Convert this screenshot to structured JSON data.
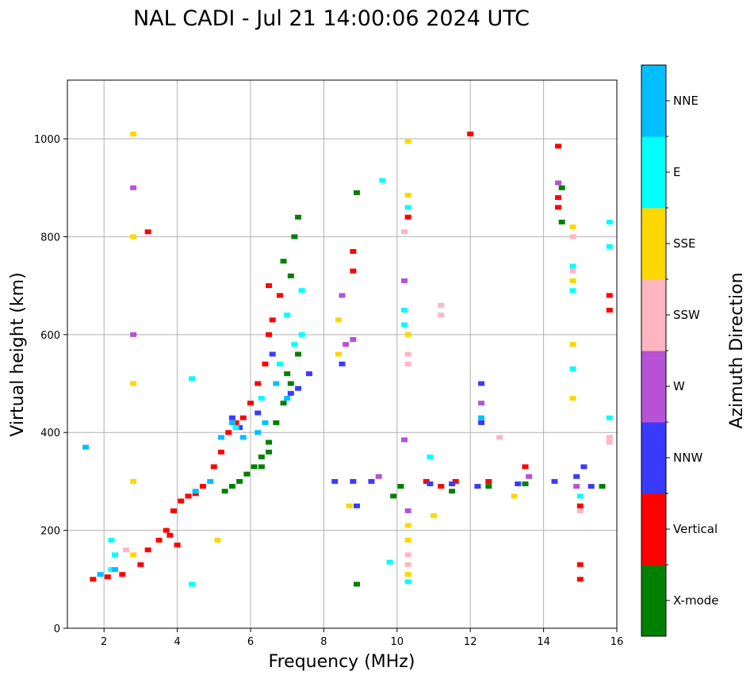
{
  "chart_data": {
    "type": "scatter",
    "title": "NAL CADI - Jul 21 14:00:06 2024 UTC",
    "xlabel": "Frequency (MHz)",
    "ylabel": "Virtual height (km)",
    "xlim": [
      1,
      16
    ],
    "ylim": [
      0,
      1120
    ],
    "xticks": [
      2,
      4,
      6,
      8,
      10,
      12,
      14,
      16
    ],
    "yticks": [
      0,
      200,
      400,
      600,
      800,
      1000
    ],
    "grid": true,
    "colorbar": {
      "title": "Azimuth Direction",
      "categories": [
        {
          "label": "X-mode",
          "color": "#008000"
        },
        {
          "label": "Vertical",
          "color": "#ff0000"
        },
        {
          "label": "NNW",
          "color": "#3a3aff"
        },
        {
          "label": "W",
          "color": "#b552d6"
        },
        {
          "label": "SSW",
          "color": "#ffb6c1"
        },
        {
          "label": "SSE",
          "color": "#ffd700"
        },
        {
          "label": "E",
          "color": "#00ffff"
        },
        {
          "label": "NNE",
          "color": "#00bfff"
        }
      ]
    },
    "series": [
      {
        "name": "X-mode",
        "points": [
          [
            5.3,
            280
          ],
          [
            5.5,
            290
          ],
          [
            5.7,
            300
          ],
          [
            5.9,
            315
          ],
          [
            6.1,
            330
          ],
          [
            6.3,
            350
          ],
          [
            6.5,
            380
          ],
          [
            6.7,
            420
          ],
          [
            6.9,
            460
          ],
          [
            7.1,
            500
          ],
          [
            7.3,
            560
          ],
          [
            7.1,
            720
          ],
          [
            6.9,
            750
          ],
          [
            7.2,
            800
          ],
          [
            7.3,
            840
          ],
          [
            8.9,
            890
          ],
          [
            8.9,
            90
          ],
          [
            10.1,
            290
          ],
          [
            11.5,
            280
          ],
          [
            12.5,
            290
          ],
          [
            13.5,
            295
          ],
          [
            14.5,
            830
          ],
          [
            14.5,
            900
          ],
          [
            15.6,
            290
          ],
          [
            9.9,
            270
          ],
          [
            6.3,
            330
          ],
          [
            6.5,
            360
          ],
          [
            7.0,
            520
          ]
        ]
      },
      {
        "name": "Vertical",
        "points": [
          [
            1.7,
            100
          ],
          [
            2.1,
            105
          ],
          [
            2.5,
            110
          ],
          [
            3.0,
            130
          ],
          [
            3.2,
            160
          ],
          [
            3.5,
            180
          ],
          [
            3.7,
            200
          ],
          [
            3.9,
            240
          ],
          [
            4.1,
            260
          ],
          [
            4.3,
            270
          ],
          [
            4.5,
            275
          ],
          [
            4.7,
            290
          ],
          [
            5.0,
            330
          ],
          [
            5.2,
            360
          ],
          [
            5.4,
            400
          ],
          [
            5.6,
            420
          ],
          [
            5.8,
            430
          ],
          [
            6.0,
            460
          ],
          [
            6.2,
            500
          ],
          [
            6.4,
            540
          ],
          [
            6.5,
            600
          ],
          [
            6.6,
            630
          ],
          [
            6.5,
            700
          ],
          [
            6.8,
            680
          ],
          [
            3.8,
            190
          ],
          [
            4.0,
            170
          ],
          [
            12.0,
            1010
          ],
          [
            14.4,
            985
          ],
          [
            14.4,
            880
          ],
          [
            14.4,
            860
          ],
          [
            10.8,
            300
          ],
          [
            11.2,
            290
          ],
          [
            11.6,
            300
          ],
          [
            12.5,
            300
          ],
          [
            13.5,
            330
          ],
          [
            15.0,
            250
          ],
          [
            15.0,
            130
          ],
          [
            15.0,
            100
          ],
          [
            15.8,
            680
          ],
          [
            15.8,
            650
          ],
          [
            8.8,
            770
          ],
          [
            8.8,
            730
          ],
          [
            10.3,
            840
          ],
          [
            3.2,
            810
          ]
        ]
      },
      {
        "name": "NNW",
        "points": [
          [
            5.5,
            430
          ],
          [
            5.7,
            410
          ],
          [
            6.2,
            440
          ],
          [
            6.6,
            560
          ],
          [
            7.1,
            480
          ],
          [
            7.3,
            490
          ],
          [
            7.6,
            520
          ],
          [
            8.3,
            300
          ],
          [
            8.8,
            300
          ],
          [
            9.3,
            300
          ],
          [
            10.9,
            295
          ],
          [
            11.5,
            295
          ],
          [
            12.2,
            290
          ],
          [
            13.3,
            295
          ],
          [
            14.3,
            300
          ],
          [
            14.9,
            310
          ],
          [
            15.1,
            330
          ],
          [
            15.3,
            290
          ],
          [
            8.9,
            250
          ],
          [
            12.3,
            500
          ],
          [
            12.3,
            420
          ],
          [
            8.5,
            540
          ]
        ]
      },
      {
        "name": "W",
        "points": [
          [
            2.8,
            900
          ],
          [
            2.8,
            600
          ],
          [
            8.8,
            590
          ],
          [
            8.6,
            580
          ],
          [
            10.2,
            710
          ],
          [
            10.2,
            385
          ],
          [
            8.5,
            680
          ],
          [
            12.3,
            460
          ],
          [
            14.9,
            290
          ],
          [
            14.4,
            910
          ],
          [
            13.6,
            310
          ],
          [
            10.3,
            240
          ],
          [
            9.5,
            310
          ]
        ]
      },
      {
        "name": "SSW",
        "points": [
          [
            2.6,
            160
          ],
          [
            10.3,
            560
          ],
          [
            10.3,
            540
          ],
          [
            10.3,
            150
          ],
          [
            10.3,
            130
          ],
          [
            11.2,
            660
          ],
          [
            11.2,
            640
          ],
          [
            14.8,
            730
          ],
          [
            14.8,
            800
          ],
          [
            15.0,
            240
          ],
          [
            15.8,
            390
          ],
          [
            15.8,
            380
          ],
          [
            12.8,
            390
          ],
          [
            10.2,
            810
          ]
        ]
      },
      {
        "name": "SSE",
        "points": [
          [
            2.8,
            1010
          ],
          [
            2.8,
            800
          ],
          [
            2.8,
            500
          ],
          [
            2.8,
            300
          ],
          [
            2.8,
            150
          ],
          [
            10.3,
            600
          ],
          [
            10.3,
            210
          ],
          [
            10.3,
            180
          ],
          [
            10.3,
            110
          ],
          [
            10.3,
            885
          ],
          [
            10.3,
            995
          ],
          [
            8.4,
            560
          ],
          [
            8.4,
            630
          ],
          [
            14.8,
            820
          ],
          [
            14.8,
            710
          ],
          [
            14.8,
            470
          ],
          [
            14.8,
            580
          ],
          [
            5.1,
            180
          ],
          [
            8.7,
            250
          ],
          [
            13.2,
            270
          ],
          [
            11.0,
            230
          ]
        ]
      },
      {
        "name": "E",
        "points": [
          [
            2.2,
            180
          ],
          [
            2.3,
            150
          ],
          [
            2.2,
            120
          ],
          [
            4.4,
            510
          ],
          [
            5.6,
            410
          ],
          [
            6.3,
            470
          ],
          [
            6.8,
            540
          ],
          [
            7.2,
            580
          ],
          [
            7.4,
            600
          ],
          [
            7.0,
            640
          ],
          [
            7.4,
            690
          ],
          [
            10.2,
            650
          ],
          [
            10.2,
            620
          ],
          [
            10.3,
            95
          ],
          [
            10.9,
            350
          ],
          [
            14.8,
            740
          ],
          [
            14.8,
            690
          ],
          [
            14.8,
            530
          ],
          [
            15.8,
            830
          ],
          [
            15.8,
            780
          ],
          [
            15.8,
            430
          ],
          [
            9.6,
            915
          ],
          [
            9.8,
            135
          ],
          [
            4.4,
            90
          ],
          [
            15.0,
            270
          ],
          [
            10.3,
            860
          ]
        ]
      },
      {
        "name": "NNE",
        "points": [
          [
            1.5,
            370
          ],
          [
            1.9,
            110
          ],
          [
            2.3,
            120
          ],
          [
            4.5,
            280
          ],
          [
            4.9,
            300
          ],
          [
            5.2,
            390
          ],
          [
            5.5,
            420
          ],
          [
            5.8,
            390
          ],
          [
            6.2,
            400
          ],
          [
            6.4,
            420
          ],
          [
            6.7,
            500
          ],
          [
            7.0,
            470
          ],
          [
            12.3,
            430
          ]
        ]
      }
    ]
  }
}
